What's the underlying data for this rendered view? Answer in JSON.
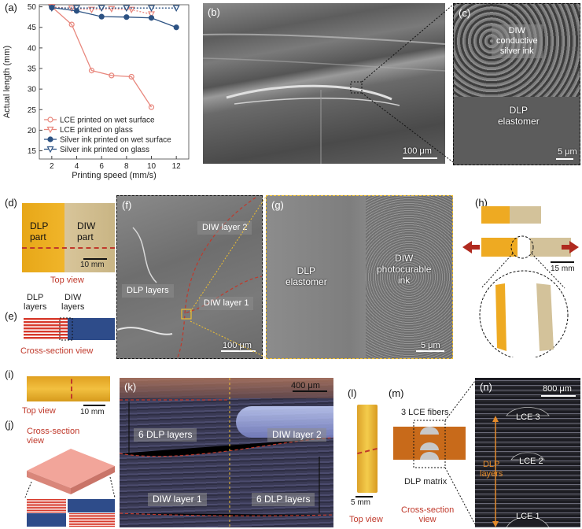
{
  "panels": {
    "a": "(a)",
    "b": "(b)",
    "c": "(c)",
    "d": "(d)",
    "e": "(e)",
    "f": "(f)",
    "g": "(g)",
    "h": "(h)",
    "i": "(i)",
    "j": "(j)",
    "k": "(k)",
    "l": "(l)",
    "m": "(m)",
    "n": "(n)"
  },
  "chart_data": {
    "type": "line",
    "xlabel": "Printing speed (mm/s)",
    "ylabel": "Actual length (mm)",
    "xlim": [
      1,
      13
    ],
    "ylim": [
      13,
      50.5
    ],
    "xticks": [
      2,
      4,
      6,
      8,
      10,
      12
    ],
    "yticks": [
      15,
      20,
      25,
      30,
      35,
      40,
      45,
      50
    ],
    "grid": false,
    "legend_position": "bottom-left",
    "series": [
      {
        "name": "LCE printed on wet surface",
        "marker": "circle",
        "color": "#e8877d",
        "x": [
          2,
          3.6,
          5.2,
          6.8,
          8.4,
          10
        ],
        "y": [
          50,
          45.7,
          34.5,
          33.3,
          33,
          25.6
        ]
      },
      {
        "name": "LCE printed on glass",
        "marker": "triangle-down",
        "color": "#e8877d",
        "x": [
          2,
          3.6,
          5.2,
          6.8,
          8.4,
          10
        ],
        "y": [
          50,
          49.6,
          49.3,
          49.5,
          49.3,
          48.2
        ]
      },
      {
        "name": "Silver ink printed on wet surface",
        "marker": "circle",
        "color": "#2c5283",
        "x": [
          2,
          4,
          6,
          8,
          10,
          12
        ],
        "y": [
          49.8,
          49,
          47.6,
          47.5,
          47.3,
          45
        ]
      },
      {
        "name": "Silver ink printed on glass",
        "marker": "triangle-down",
        "color": "#2c5283",
        "x": [
          2,
          4,
          6,
          8,
          10,
          12
        ],
        "y": [
          49.7,
          49.7,
          49.7,
          49.7,
          49.7,
          49.7
        ]
      }
    ]
  },
  "b": {
    "scale": "100 μm"
  },
  "c": {
    "top": "DIW\nconductive\nsilver ink",
    "bottom": "DLP\nelastomer",
    "scale": "5 μm"
  },
  "d": {
    "left": "DLP\npart",
    "right": "DIW\npart",
    "scale": "10 mm",
    "caption": "Top view"
  },
  "e": {
    "left": "DLP\nlayers",
    "right": "DIW\nlayers",
    "caption": "Cross-section view"
  },
  "f": {
    "layer2": "DIW layer 2",
    "dlp": "DLP layers",
    "layer1": "DIW layer 1",
    "scale": "100 μm"
  },
  "g": {
    "left": "DLP\nelastomer",
    "right": "DIW\nphotocurable\nink",
    "scale": "5 μm"
  },
  "h": {
    "scale": "15 mm"
  },
  "i": {
    "scale": "10 mm",
    "caption": "Top view"
  },
  "j": {
    "caption": "Cross-section\nview"
  },
  "k": {
    "scale": "400 μm",
    "tl": "6 DLP layers",
    "tr": "DIW layer 2",
    "bl": "DIW layer 1",
    "br": "6 DLP layers"
  },
  "l": {
    "scale": "5 mm",
    "caption": "Top view"
  },
  "m": {
    "fibers": "3 LCE fibers",
    "matrix": "DLP matrix",
    "caption": "Cross-section\nview"
  },
  "n": {
    "scale": "800 μm",
    "lce3": "LCE 3",
    "lce2": "LCE 2",
    "lce1": "LCE 1",
    "layers": "DLP\nlayers"
  }
}
